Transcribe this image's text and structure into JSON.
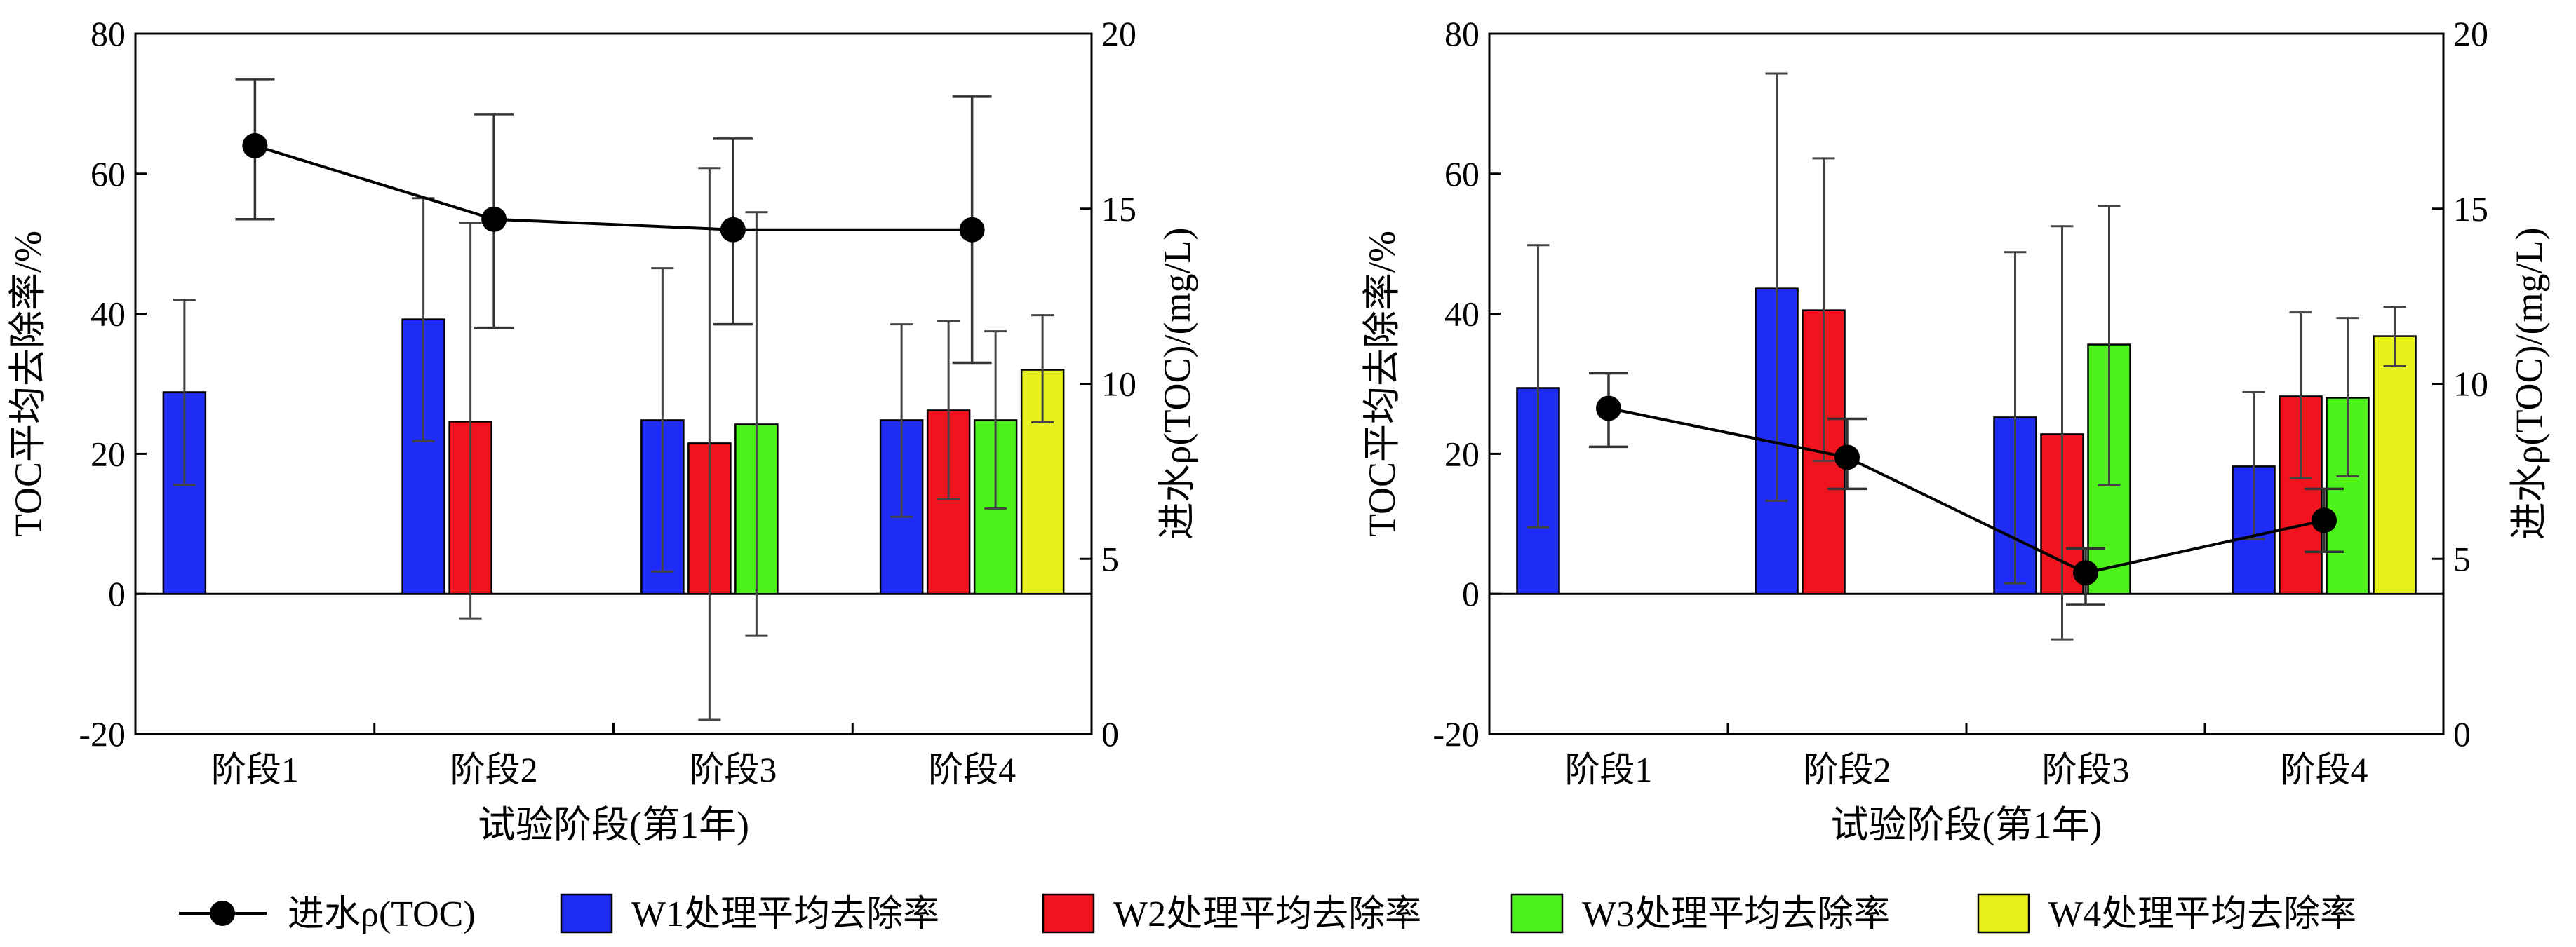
{
  "colors": {
    "W1": "#1f2cf5",
    "W2": "#f0141e",
    "W3": "#4cf21a",
    "W4": "#e6f21a",
    "line": "#000000"
  },
  "legend": {
    "influent": "进水ρ(TOC)",
    "W1": "W1处理平均去除率",
    "W2": "W2处理平均去除率",
    "W3": "W3处理平均去除率",
    "W4": "W4处理平均去除率"
  },
  "chart_data": [
    {
      "type": "bar",
      "panel": "left",
      "categories": [
        "阶段1",
        "阶段2",
        "阶段3",
        "阶段4"
      ],
      "xlabel": "试验阶段(第1年)",
      "ylabel": "TOC平均去除率/%",
      "y2label": "进水ρ(TOC)/(mg/L)",
      "ylim": [
        -20,
        80
      ],
      "yticks": [
        -20,
        0,
        20,
        40,
        60,
        80
      ],
      "y2lim": [
        0,
        20
      ],
      "y2ticks": [
        0,
        5,
        10,
        15,
        20
      ],
      "series": [
        {
          "name": "W1处理平均去除率",
          "key": "W1",
          "values": [
            28.8,
            39.2,
            24.8,
            24.8
          ],
          "err_low": [
            15.6,
            21.8,
            3.2,
            11.0
          ],
          "err_high": [
            42.0,
            56.5,
            46.5,
            38.5
          ]
        },
        {
          "name": "W2处理平均去除率",
          "key": "W2",
          "values": [
            null,
            24.6,
            21.5,
            26.2
          ],
          "err_low": [
            null,
            -3.5,
            -18.0,
            13.5
          ],
          "err_high": [
            null,
            53.0,
            60.8,
            39.0
          ]
        },
        {
          "name": "W3处理平均去除率",
          "key": "W3",
          "values": [
            null,
            null,
            24.2,
            24.8
          ],
          "err_low": [
            null,
            null,
            -6.0,
            12.2
          ],
          "err_high": [
            null,
            null,
            54.5,
            37.5
          ]
        },
        {
          "name": "W4处理平均去除率",
          "key": "W4",
          "values": [
            null,
            null,
            null,
            32.0
          ],
          "err_low": [
            null,
            null,
            null,
            24.5
          ],
          "err_high": [
            null,
            null,
            null,
            39.8
          ]
        }
      ],
      "line": {
        "name": "进水ρ(TOC)",
        "values": [
          16.8,
          14.7,
          14.4,
          14.4
        ],
        "err_low": [
          14.7,
          11.6,
          11.7,
          10.6
        ],
        "err_high": [
          18.7,
          17.7,
          17.0,
          18.2
        ]
      }
    },
    {
      "type": "bar",
      "panel": "right",
      "categories": [
        "阶段1",
        "阶段2",
        "阶段3",
        "阶段4"
      ],
      "xlabel": "试验阶段(第1年)",
      "ylabel": "TOC平均去除率/%",
      "y2label": "进水ρ(TOC)/(mg/L)",
      "ylim": [
        -20,
        80
      ],
      "yticks": [
        -20,
        0,
        20,
        40,
        60,
        80
      ],
      "y2lim": [
        0,
        20
      ],
      "y2ticks": [
        0,
        5,
        10,
        15,
        20
      ],
      "series": [
        {
          "name": "W1处理平均去除率",
          "key": "W1",
          "values": [
            29.4,
            43.6,
            25.2,
            18.2
          ],
          "err_low": [
            9.5,
            13.3,
            1.5,
            7.8
          ],
          "err_high": [
            49.8,
            74.3,
            48.8,
            28.8
          ]
        },
        {
          "name": "W2处理平均去除率",
          "key": "W2",
          "values": [
            null,
            40.5,
            22.8,
            28.2
          ],
          "err_low": [
            null,
            19.0,
            -6.5,
            16.5
          ],
          "err_high": [
            null,
            62.2,
            52.5,
            40.2
          ]
        },
        {
          "name": "W3处理平均去除率",
          "key": "W3",
          "values": [
            null,
            null,
            35.6,
            28.0
          ],
          "err_low": [
            null,
            null,
            15.5,
            16.8
          ],
          "err_high": [
            null,
            null,
            55.4,
            39.4
          ]
        },
        {
          "name": "W4处理平均去除率",
          "key": "W4",
          "values": [
            null,
            null,
            null,
            36.8
          ],
          "err_low": [
            null,
            null,
            null,
            32.5
          ],
          "err_high": [
            null,
            null,
            null,
            41.0
          ]
        }
      ],
      "line": {
        "name": "进水ρ(TOC)",
        "values": [
          9.3,
          7.9,
          4.6,
          6.1
        ],
        "err_low": [
          8.2,
          7.0,
          3.7,
          5.2
        ],
        "err_high": [
          10.3,
          9.0,
          5.3,
          7.0
        ]
      }
    }
  ]
}
